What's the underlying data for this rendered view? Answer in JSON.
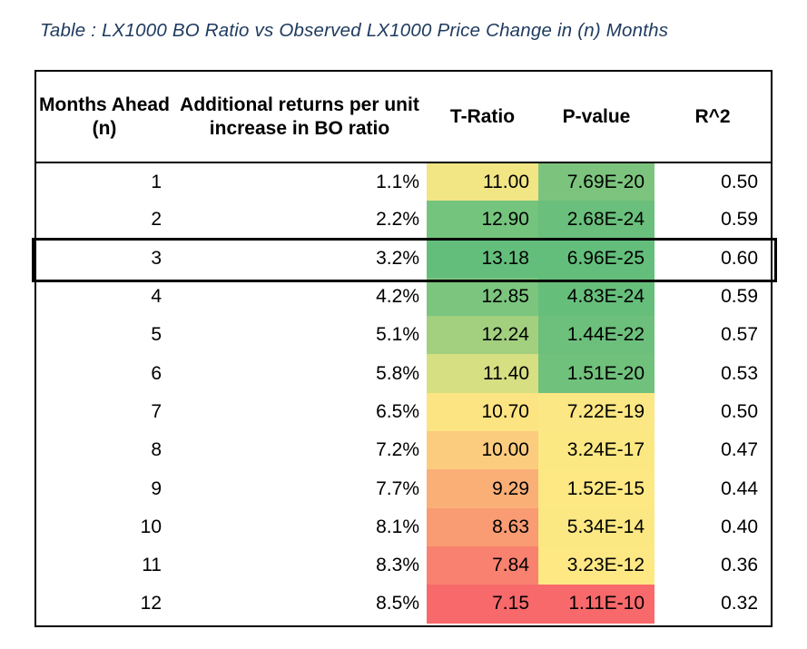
{
  "title": "Table : LX1000 BO Ratio vs Observed LX1000 Price Change in (n) Months",
  "table": {
    "headers": [
      "Months Ahead (n)",
      "Additional returns per unit increase in BO ratio",
      "T-Ratio",
      "P-value",
      "R^2"
    ],
    "rows": [
      {
        "n": "1",
        "add_return": "1.1%",
        "t_ratio": "11.00",
        "t_color": "#F2E584",
        "p_value": "7.69E-20",
        "p_color": "#7CC47E",
        "r2": "0.50",
        "highlight": false
      },
      {
        "n": "2",
        "add_return": "2.2%",
        "t_ratio": "12.90",
        "t_color": "#74C47D",
        "p_value": "2.68E-24",
        "p_color": "#69BF7B",
        "r2": "0.59",
        "highlight": false
      },
      {
        "n": "3",
        "add_return": "3.2%",
        "t_ratio": "13.18",
        "t_color": "#63BE7B",
        "p_value": "6.96E-25",
        "p_color": "#63BE7B",
        "r2": "0.60",
        "highlight": true
      },
      {
        "n": "4",
        "add_return": "4.2%",
        "t_ratio": "12.85",
        "t_color": "#7BC57E",
        "p_value": "4.83E-24",
        "p_color": "#66BE7B",
        "r2": "0.59",
        "highlight": false
      },
      {
        "n": "5",
        "add_return": "5.1%",
        "t_ratio": "12.24",
        "t_color": "#A2D07F",
        "p_value": "1.44E-22",
        "p_color": "#6CC07C",
        "r2": "0.57",
        "highlight": false
      },
      {
        "n": "6",
        "add_return": "5.8%",
        "t_ratio": "11.40",
        "t_color": "#D6DF82",
        "p_value": "1.51E-20",
        "p_color": "#70C17C",
        "r2": "0.53",
        "highlight": false
      },
      {
        "n": "7",
        "add_return": "6.5%",
        "t_ratio": "10.70",
        "t_color": "#FDE483",
        "p_value": "7.22E-19",
        "p_color": "#FBE783",
        "r2": "0.50",
        "highlight": false
      },
      {
        "n": "8",
        "add_return": "7.2%",
        "t_ratio": "10.00",
        "t_color": "#FCCC7E",
        "p_value": "3.24E-17",
        "p_color": "#FCE883",
        "r2": "0.47",
        "highlight": false
      },
      {
        "n": "9",
        "add_return": "7.7%",
        "t_ratio": "9.29",
        "t_color": "#FAAF77",
        "p_value": "1.52E-15",
        "p_color": "#FDE884",
        "r2": "0.44",
        "highlight": false
      },
      {
        "n": "10",
        "add_return": "8.1%",
        "t_ratio": "8.63",
        "t_color": "#F99B73",
        "p_value": "5.34E-14",
        "p_color": "#FBE883",
        "r2": "0.40",
        "highlight": false
      },
      {
        "n": "11",
        "add_return": "8.3%",
        "t_ratio": "7.84",
        "t_color": "#F8816F",
        "p_value": "3.23E-12",
        "p_color": "#FDE884",
        "r2": "0.36",
        "highlight": false
      },
      {
        "n": "12",
        "add_return": "8.5%",
        "t_ratio": "7.15",
        "t_color": "#F8696B",
        "p_value": "1.11E-10",
        "p_color": "#F8696B",
        "r2": "0.32",
        "highlight": false
      }
    ]
  },
  "colors": {
    "title_text": "#1E3A5E",
    "border": "#000000",
    "scale_green": "#63BE7B",
    "scale_yellow": "#FFEB84",
    "scale_red": "#F8696B"
  },
  "chart_data": {
    "type": "table",
    "title": "Table : LX1000 BO Ratio vs Observed LX1000 Price Change in (n) Months",
    "columns": [
      "Months Ahead (n)",
      "Additional returns per unit increase in BO ratio",
      "T-Ratio",
      "P-value",
      "R^2"
    ],
    "months_ahead": [
      1,
      2,
      3,
      4,
      5,
      6,
      7,
      8,
      9,
      10,
      11,
      12
    ],
    "additional_returns_pct": [
      1.1,
      2.2,
      3.2,
      4.2,
      5.1,
      5.8,
      6.5,
      7.2,
      7.7,
      8.1,
      8.3,
      8.5
    ],
    "t_ratio": [
      11.0,
      12.9,
      13.18,
      12.85,
      12.24,
      11.4,
      10.7,
      10.0,
      9.29,
      8.63,
      7.84,
      7.15
    ],
    "p_value": [
      "7.69E-20",
      "2.68E-24",
      "6.96E-25",
      "4.83E-24",
      "1.44E-22",
      "1.51E-20",
      "7.22E-19",
      "3.24E-17",
      "1.52E-15",
      "5.34E-14",
      "3.23E-12",
      "1.11E-10"
    ],
    "r_squared": [
      0.5,
      0.59,
      0.6,
      0.59,
      0.57,
      0.53,
      0.5,
      0.47,
      0.44,
      0.4,
      0.36,
      0.32
    ],
    "highlighted_row_months_ahead": 3,
    "conditional_formatting": "T-Ratio and P-value columns use a green-yellow-red color scale; best values green, worst red",
    "legend_position": "none",
    "grid": false
  }
}
